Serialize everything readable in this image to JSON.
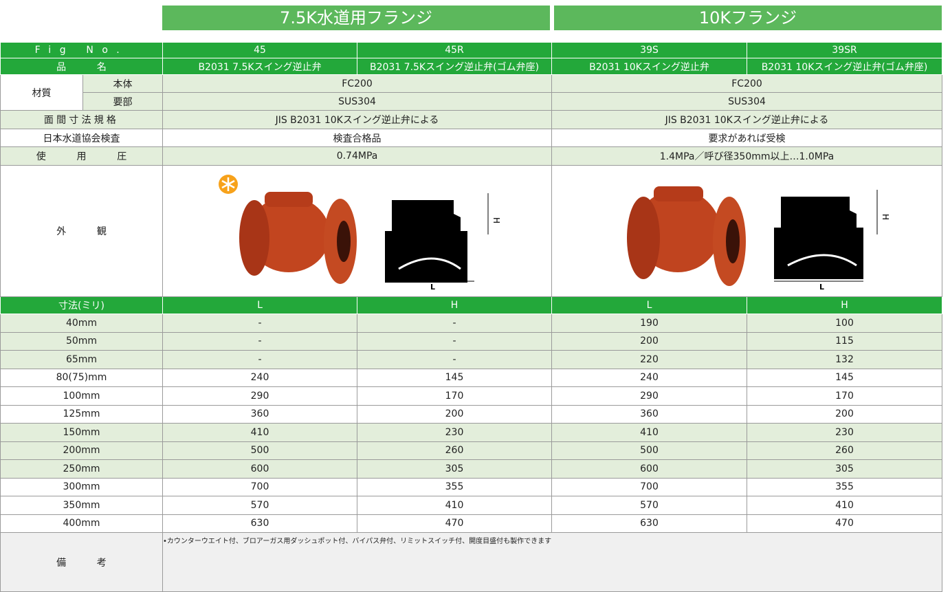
{
  "header": {
    "groups": [
      "7.5K水道用フランジ",
      "10Kフランジ"
    ]
  },
  "spec": {
    "fig_no": {
      "label": "Fig No.",
      "values": [
        "45",
        "45R",
        "39S",
        "39SR"
      ]
    },
    "name": {
      "label": "品名",
      "values": [
        "B2031 7.5Kスイング逆止弁",
        "B2031 7.5Kスイング逆止弁(ゴム弁座)",
        "B2031 10Kスイング逆止弁",
        "B2031 10Kスイング逆止弁(ゴム弁座)"
      ]
    },
    "material": {
      "label": "材質",
      "body": {
        "label": "本体",
        "values": [
          "FC200",
          "FC200"
        ]
      },
      "part": {
        "label": "要部",
        "values": [
          "SUS304",
          "SUS304"
        ]
      }
    },
    "face_to_face": {
      "label": "面間寸法規格",
      "values": [
        "JIS B2031 10Kスイング逆止弁による",
        "JIS B2031 10Kスイング逆止弁による"
      ]
    },
    "inspection": {
      "label": "日本水道協会検査",
      "values": [
        "検査合格品",
        "要求があれば受検"
      ]
    },
    "pressure": {
      "label": "使用圧",
      "values": [
        "0.74MPa",
        "1.4MPa／呼び径350mm以上…1.0MPa"
      ]
    },
    "appearance": {
      "label": "外観",
      "diagram_labels": {
        "height": "H",
        "length": "L"
      }
    }
  },
  "dimensions": {
    "header": [
      "寸法(ミリ)",
      "L",
      "H",
      "L",
      "H"
    ],
    "rows": [
      [
        "40mm",
        "-",
        "-",
        190,
        100
      ],
      [
        "50mm",
        "-",
        "-",
        200,
        115
      ],
      [
        "65mm",
        "-",
        "-",
        220,
        132
      ],
      [
        "80(75)mm",
        240,
        145,
        240,
        145
      ],
      [
        "100mm",
        290,
        170,
        290,
        170
      ],
      [
        "125mm",
        360,
        200,
        360,
        200
      ],
      [
        "150mm",
        410,
        230,
        410,
        230
      ],
      [
        "200mm",
        500,
        260,
        500,
        260
      ],
      [
        "250mm",
        600,
        305,
        600,
        305
      ],
      [
        "300mm",
        700,
        355,
        700,
        355
      ],
      [
        "350mm",
        570,
        410,
        570,
        410
      ],
      [
        "400mm",
        630,
        470,
        630,
        470
      ]
    ]
  },
  "remarks": {
    "label": "備考",
    "text": "•カウンターウエイト付、ブロアーガス用ダッシュポット付、バイパス弁付、リミットスイッチ付、開度目盛付も製作できます"
  }
}
